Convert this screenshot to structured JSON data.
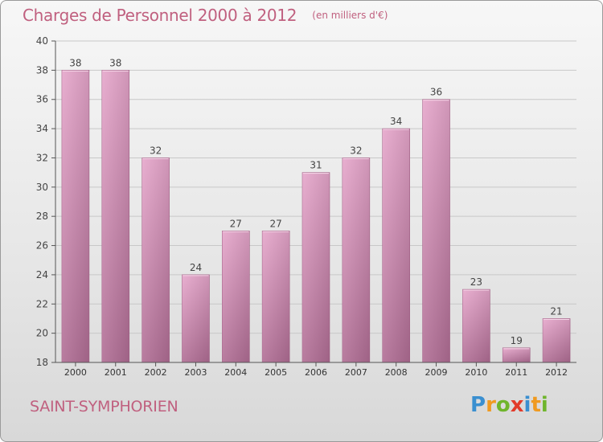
{
  "header": {
    "title": "Charges de Personnel 2000 à 2012",
    "subtitle": "(en milliers d'€)"
  },
  "footer": {
    "place": "SAINT-SYMPHORIEN",
    "logo": {
      "letters": [
        "P",
        "r",
        "o",
        "x",
        "i",
        "t",
        "i"
      ],
      "colors": [
        "#3a8fd0",
        "#f09a20",
        "#6fb52c",
        "#e23a2a",
        "#3a8fd0",
        "#f09a20",
        "#6fb52c"
      ]
    }
  },
  "chart_data": {
    "type": "bar",
    "title": "Charges de Personnel 2000 à 2012",
    "subtitle": "(en milliers d'€)",
    "categories": [
      "2000",
      "2001",
      "2002",
      "2003",
      "2004",
      "2005",
      "2006",
      "2007",
      "2008",
      "2009",
      "2010",
      "2011",
      "2012"
    ],
    "values": [
      38,
      38,
      32,
      24,
      27,
      27,
      31,
      32,
      34,
      36,
      23,
      19,
      21
    ],
    "ylim": [
      18,
      40
    ],
    "yticks": [
      18,
      20,
      22,
      24,
      26,
      28,
      30,
      32,
      34,
      36,
      38,
      40
    ],
    "grid": true,
    "data_labels": true,
    "colors": {
      "bar_light": "#e6a6cb",
      "bar_dark": "#b06d94",
      "axis": "#555555",
      "grid": "#c8c8c8"
    }
  }
}
